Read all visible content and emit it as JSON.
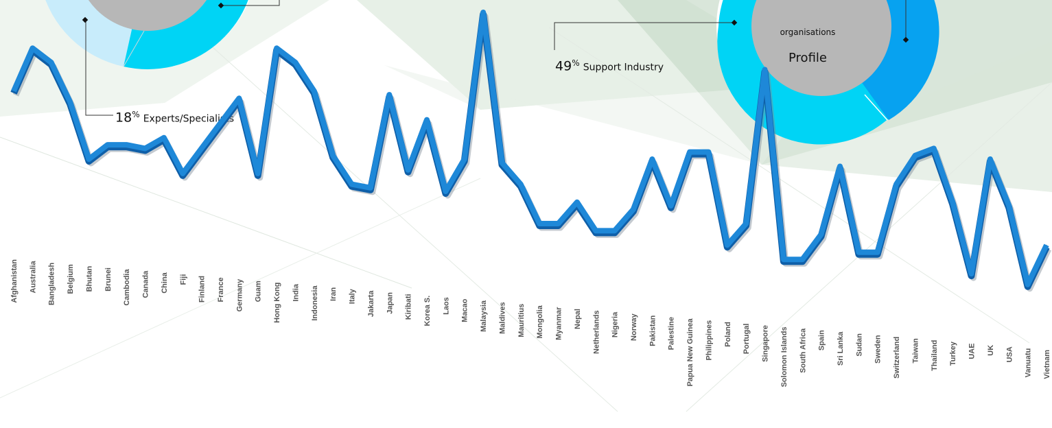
{
  "callouts": {
    "experts": {
      "value": "18",
      "symbol": "%",
      "label": "Experts/Specialists"
    },
    "support": {
      "value": "49",
      "symbol": "%",
      "label": "Support Industry"
    }
  },
  "donut": {
    "top_text": "organisations",
    "main_text": "Profile"
  },
  "colors": {
    "line": "#1e88d8",
    "line_dark": "#0f5fa8",
    "donut_cyan": "#00d4f5",
    "donut_blue": "#07a2f0",
    "donut_light": "#c8ecfb",
    "donut_center": "#b7b7b7"
  },
  "chart_data": {
    "type": "line",
    "title": "",
    "xlabel": "",
    "ylabel": "",
    "categories": [
      "Afghanistan",
      "Australia",
      "Bangladesh",
      "Belgium",
      "Bhutan",
      "Brunei",
      "Cambodia",
      "Canada",
      "China",
      "Fiji",
      "Finland",
      "France",
      "Germany",
      "Guam",
      "Hong Kong",
      "India",
      "Indonesia",
      "Iran",
      "Italy",
      "Jakarta",
      "Japan",
      "Kiribati",
      "Korea S.",
      "Laos",
      "Macao",
      "Malaysia",
      "Maldives",
      "Mauritius",
      "Mongolia",
      "Myanmar",
      "Nepal",
      "Netherlands",
      "Nigeria",
      "Norway",
      "Pakistan",
      "Palestine",
      "Papua New Guinea",
      "Philippines",
      "Poland",
      "Portugal",
      "Singapore",
      "Solomon Islands",
      "South Africa",
      "Spain",
      "Sri Lanka",
      "Sudan",
      "Sweden",
      "Switzerland",
      "Taiwan",
      "Thailand",
      "Turkey",
      "UAE",
      "UK",
      "USA",
      "Vanuatu",
      "Vietnam"
    ],
    "values": [
      78,
      90,
      86,
      75,
      59,
      63,
      63,
      62,
      65,
      55,
      62,
      69,
      76,
      55,
      90,
      86,
      78,
      60,
      52,
      51,
      77,
      56,
      70,
      50,
      59,
      100,
      58,
      52,
      41,
      41,
      47,
      39,
      39,
      45,
      59,
      46,
      61,
      61,
      35,
      41,
      84,
      31,
      31,
      38,
      57,
      33,
      33,
      52,
      60,
      62,
      47,
      27,
      59,
      46,
      24,
      35
    ],
    "ylim": [
      0,
      100
    ],
    "grid": false,
    "legend": "none"
  }
}
